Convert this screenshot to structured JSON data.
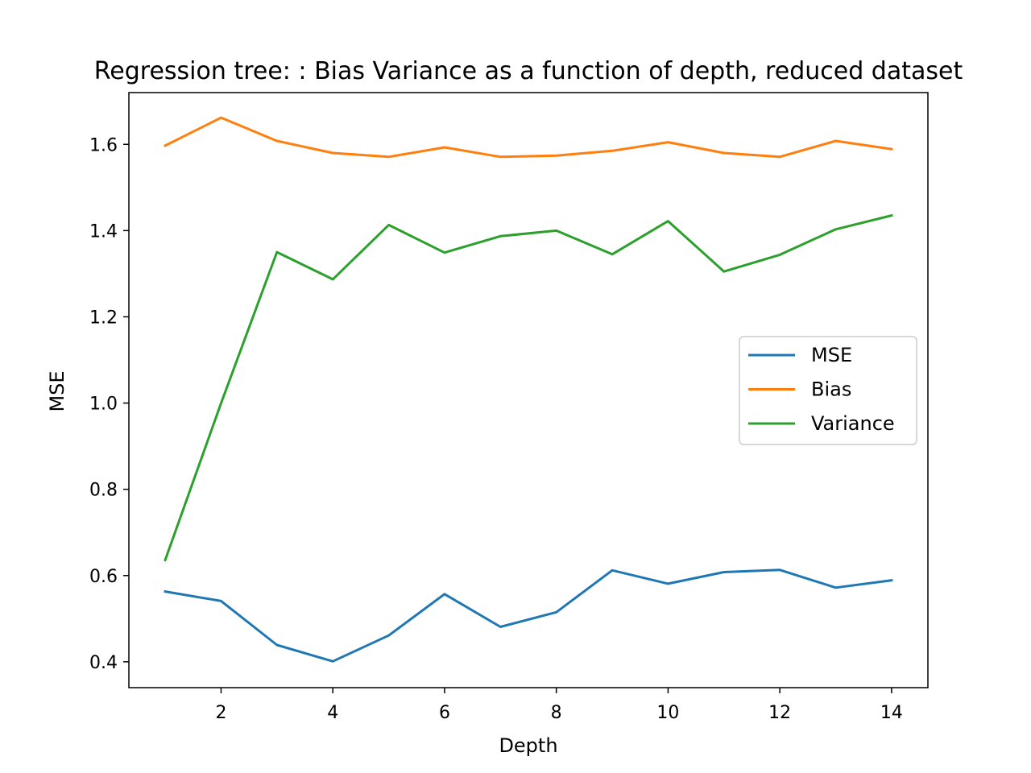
{
  "chart_data": {
    "type": "line",
    "title": "Regression tree: : Bias Variance as a function of depth, reduced dataset",
    "xlabel": "Depth",
    "ylabel": "MSE",
    "xlim": [
      0.35,
      14.65
    ],
    "ylim": [
      0.34,
      1.72
    ],
    "xticks": [
      2,
      4,
      6,
      8,
      10,
      12,
      14
    ],
    "xtick_labels": [
      "2",
      "4",
      "6",
      "8",
      "10",
      "12",
      "14"
    ],
    "yticks": [
      0.4,
      0.6,
      0.8,
      1.0,
      1.2,
      1.4,
      1.6
    ],
    "ytick_labels": [
      "0.4",
      "0.6",
      "0.8",
      "1.0",
      "1.2",
      "1.4",
      "1.6"
    ],
    "grid": false,
    "legend_position": "center-right",
    "x": [
      1,
      2,
      3,
      4,
      5,
      6,
      7,
      8,
      9,
      10,
      11,
      12,
      13,
      14
    ],
    "series": [
      {
        "name": "MSE",
        "color": "#1f77b4",
        "values": [
          0.563,
          0.541,
          0.439,
          0.401,
          0.461,
          0.557,
          0.481,
          0.515,
          0.612,
          0.581,
          0.608,
          0.613,
          0.572,
          0.589
        ]
      },
      {
        "name": "Bias",
        "color": "#ff7f0e",
        "values": [
          1.597,
          1.662,
          1.608,
          1.58,
          1.571,
          1.593,
          1.571,
          1.574,
          1.585,
          1.605,
          1.58,
          1.571,
          1.608,
          1.589
        ]
      },
      {
        "name": "Variance",
        "color": "#2ca02c",
        "values": [
          0.636,
          1.0,
          1.35,
          1.287,
          1.413,
          1.349,
          1.387,
          1.4,
          1.345,
          1.422,
          1.305,
          1.344,
          1.403,
          1.435
        ]
      }
    ]
  }
}
